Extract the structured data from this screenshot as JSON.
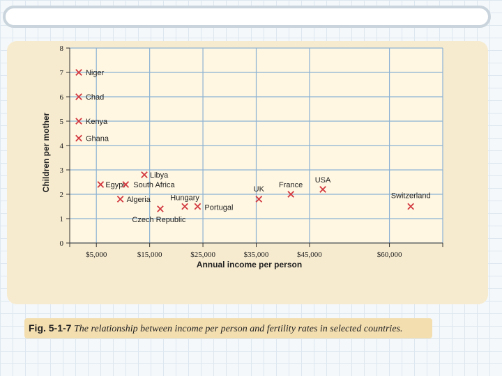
{
  "caption": {
    "label": "Fig. 5-1-7",
    "text": "The relationship between income per person and fertility rates in selected countries."
  },
  "colors": {
    "marker": "#d2383f",
    "grid": "#8cb2d4",
    "panel": "#f7ebcf"
  },
  "chart_data": {
    "type": "scatter",
    "xlabel": "Annual income per person",
    "ylabel": "Children per mother",
    "xlim": [
      0,
      70000
    ],
    "ylim": [
      0,
      8
    ],
    "grid": true,
    "x_ticks": [
      5000,
      15000,
      25000,
      35000,
      45000,
      60000
    ],
    "x_tick_labels": [
      "$5,000",
      "$15,000",
      "$25,000",
      "$35,000",
      "$45,000",
      "$60,000"
    ],
    "y_ticks": [
      0,
      1,
      2,
      3,
      4,
      5,
      6,
      7,
      8
    ],
    "points": [
      {
        "label": "Niger",
        "x": 1700,
        "y": 7.0
      },
      {
        "label": "Chad",
        "x": 1700,
        "y": 6.0
      },
      {
        "label": "Kenya",
        "x": 1700,
        "y": 5.0
      },
      {
        "label": "Ghana",
        "x": 1700,
        "y": 4.3
      },
      {
        "label": "Egypt",
        "x": 5800,
        "y": 2.4
      },
      {
        "label": "South Africa",
        "x": 10500,
        "y": 2.4
      },
      {
        "label": "Libya",
        "x": 14000,
        "y": 2.8
      },
      {
        "label": "Algeria",
        "x": 9500,
        "y": 1.8
      },
      {
        "label": "Czech Republic",
        "x": 17000,
        "y": 1.4
      },
      {
        "label": "Hungary",
        "x": 21600,
        "y": 1.5
      },
      {
        "label": "Portugal",
        "x": 24000,
        "y": 1.5
      },
      {
        "label": "UK",
        "x": 35500,
        "y": 1.8
      },
      {
        "label": "France",
        "x": 41500,
        "y": 2.0
      },
      {
        "label": "USA",
        "x": 47500,
        "y": 2.2
      },
      {
        "label": "Switzerland",
        "x": 64000,
        "y": 1.5
      }
    ]
  }
}
